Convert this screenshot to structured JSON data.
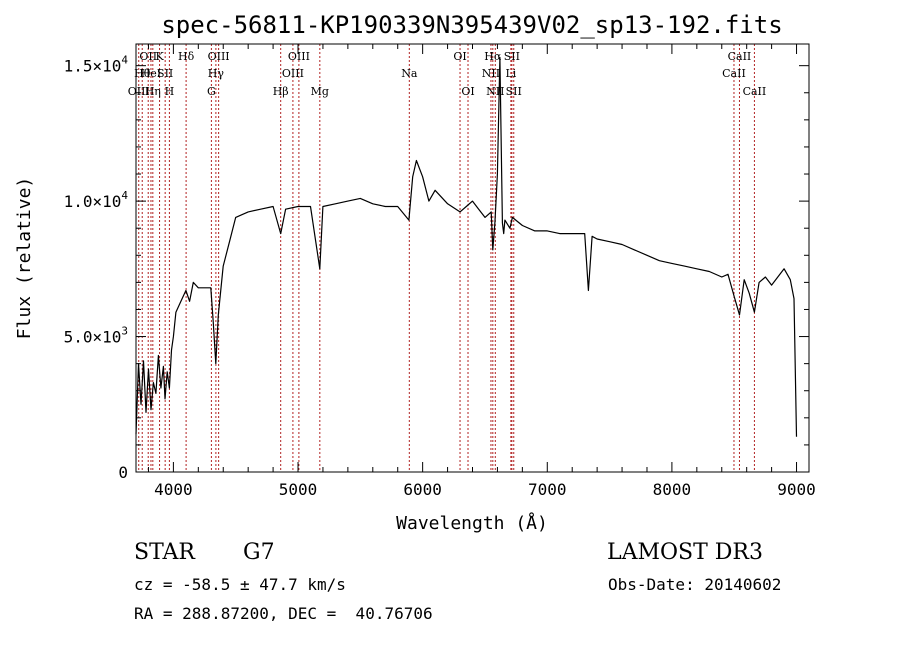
{
  "chart_data": {
    "type": "line",
    "title": "spec-56811-KP190339N395439V02_sp13-192.fits",
    "xlabel": "Wavelength (Å)",
    "ylabel": "Flux (relative)",
    "xlim": [
      3700,
      9100
    ],
    "ylim": [
      0,
      15800
    ],
    "x_ticks": [
      4000,
      5000,
      6000,
      7000,
      8000,
      9000
    ],
    "x_tick_labels": [
      "4000",
      "5000",
      "6000",
      "7000",
      "8000",
      "9000"
    ],
    "y_ticks": [
      0,
      5000,
      10000,
      15000
    ],
    "y_tick_labels": [
      {
        "mantissa": "0",
        "exp": ""
      },
      {
        "mantissa": "5.0×10",
        "exp": "3"
      },
      {
        "mantissa": "1.0×10",
        "exp": "4"
      },
      {
        "mantissa": "1.5×10",
        "exp": "4"
      }
    ],
    "series": [
      {
        "name": "flux",
        "x": [
          3700,
          3720,
          3740,
          3760,
          3780,
          3800,
          3820,
          3840,
          3860,
          3880,
          3900,
          3920,
          3933,
          3950,
          3968,
          3985,
          4000,
          4020,
          4050,
          4080,
          4100,
          4130,
          4160,
          4200,
          4250,
          4300,
          4320,
          4340,
          4360,
          4400,
          4450,
          4500,
          4550,
          4600,
          4700,
          4800,
          4861,
          4900,
          5000,
          5100,
          5175,
          5200,
          5300,
          5400,
          5500,
          5600,
          5700,
          5800,
          5890,
          5920,
          5950,
          6000,
          6050,
          6100,
          6200,
          6300,
          6350,
          6400,
          6450,
          6500,
          6550,
          6563,
          6580,
          6600,
          6620,
          6640,
          6650,
          6660,
          6700,
          6720,
          6800,
          6900,
          7000,
          7100,
          7200,
          7300,
          7330,
          7360,
          7400,
          7500,
          7600,
          7700,
          7800,
          7900,
          8000,
          8100,
          8200,
          8300,
          8400,
          8450,
          8498,
          8542,
          8580,
          8620,
          8662,
          8700,
          8750,
          8800,
          8850,
          8900,
          8950,
          8980,
          9000
        ],
        "values": [
          1400,
          4000,
          2500,
          4100,
          2200,
          3800,
          2300,
          3300,
          2900,
          4300,
          3100,
          3900,
          2700,
          3700,
          3100,
          4500,
          5000,
          5900,
          6200,
          6500,
          6700,
          6300,
          7000,
          6800,
          6800,
          6800,
          5500,
          4000,
          5800,
          7600,
          8500,
          9400,
          9500,
          9600,
          9700,
          9800,
          8800,
          9700,
          9800,
          9800,
          7500,
          9800,
          9900,
          10000,
          10100,
          9900,
          9800,
          9800,
          9300,
          10900,
          11500,
          10900,
          10000,
          10400,
          9900,
          9600,
          9800,
          10000,
          9700,
          9400,
          9600,
          8200,
          9200,
          11000,
          15300,
          9200,
          8800,
          9300,
          9000,
          9400,
          9100,
          8900,
          8900,
          8800,
          8800,
          8800,
          6700,
          8700,
          8600,
          8500,
          8400,
          8200,
          8000,
          7800,
          7700,
          7600,
          7500,
          7400,
          7200,
          7300,
          6500,
          5800,
          7100,
          6600,
          5900,
          7000,
          7200,
          6900,
          7200,
          7500,
          7100,
          6400,
          1300
        ]
      }
    ],
    "lines": [
      {
        "x": 3722,
        "label": "OIII",
        "row": 2,
        "color": "#b22222"
      },
      {
        "x": 3750,
        "label": "Hθ",
        "row": 1,
        "color": "#b22222"
      },
      {
        "x": 3798,
        "label": "OII",
        "row": 0,
        "color": "#b22222"
      },
      {
        "x": 3820,
        "label": "HeI",
        "row": 1,
        "color": "#b22222"
      },
      {
        "x": 3835,
        "label": "Hη",
        "row": 2,
        "color": "#b22222"
      },
      {
        "x": 3889,
        "label": "K",
        "row": 0,
        "color": "#b22222"
      },
      {
        "x": 3934,
        "label": "SII",
        "row": 1,
        "color": "#b22222"
      },
      {
        "x": 3968,
        "label": "H",
        "row": 2,
        "color": "#b22222"
      },
      {
        "x": 4102,
        "label": "Hδ",
        "row": 0,
        "color": "#b22222"
      },
      {
        "x": 4305,
        "label": "G",
        "row": 2,
        "color": "#b22222"
      },
      {
        "x": 4341,
        "label": "Hγ",
        "row": 1,
        "color": "#b22222"
      },
      {
        "x": 4363,
        "label": "OIII",
        "row": 0,
        "color": "#b22222"
      },
      {
        "x": 4861,
        "label": "Hβ",
        "row": 2,
        "color": "#b22222"
      },
      {
        "x": 4959,
        "label": "OIII",
        "row": 1,
        "color": "#b22222"
      },
      {
        "x": 5007,
        "label": "OIII",
        "row": 0,
        "color": "#b22222"
      },
      {
        "x": 5175,
        "label": "Mg",
        "row": 2,
        "color": "#b22222"
      },
      {
        "x": 5893,
        "label": "Na",
        "row": 1,
        "color": "#b22222"
      },
      {
        "x": 6300,
        "label": "OI",
        "row": 0,
        "color": "#b22222"
      },
      {
        "x": 6364,
        "label": "OI",
        "row": 2,
        "color": "#b22222"
      },
      {
        "x": 6548,
        "label": "NII",
        "row": 1,
        "color": "#b22222"
      },
      {
        "x": 6563,
        "label": "Hα",
        "row": 0,
        "color": "#b22222"
      },
      {
        "x": 6583,
        "label": "NII",
        "row": 2,
        "color": "#b22222"
      },
      {
        "x": 6708,
        "label": "Li",
        "row": 1,
        "color": "#b22222"
      },
      {
        "x": 6716,
        "label": "SII",
        "row": 0,
        "color": "#b22222"
      },
      {
        "x": 6731,
        "label": "SII",
        "row": 2,
        "color": "#b22222"
      },
      {
        "x": 8498,
        "label": "CaII",
        "row": 1,
        "color": "#b22222"
      },
      {
        "x": 8542,
        "label": "CaII",
        "row": 0,
        "color": "#b22222"
      },
      {
        "x": 8662,
        "label": "CaII",
        "row": 2,
        "color": "#b22222"
      }
    ]
  },
  "info": {
    "object_class": "STAR",
    "subclass": "G7",
    "survey": "LAMOST DR3",
    "redshift": "cz = -58.5 ± 47.7 km/s",
    "obs_date": "Obs-Date: 20140602",
    "coords": "RA = 288.87200, DEC =  40.76706"
  }
}
